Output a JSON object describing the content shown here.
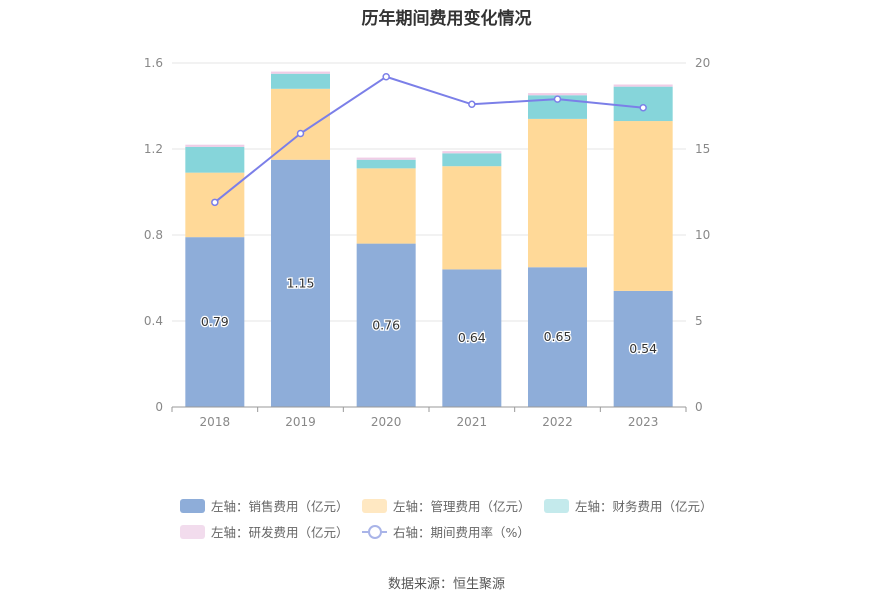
{
  "chart_data": {
    "type": "bar",
    "title": "历年期间费用变化情况",
    "categories": [
      "2018",
      "2019",
      "2020",
      "2021",
      "2022",
      "2023"
    ],
    "series": [
      {
        "name": "左轴：销售费用（亿元）",
        "type": "bar",
        "axis": "left",
        "color": "#8eadd9",
        "values": [
          0.79,
          1.15,
          0.76,
          0.64,
          0.65,
          0.54
        ],
        "labels": [
          "0.79",
          "1.15",
          "0.76",
          "0.64",
          "0.65",
          "0.54"
        ]
      },
      {
        "name": "左轴：管理费用（亿元）",
        "type": "bar",
        "axis": "left",
        "color": "#ffd998",
        "values": [
          0.3,
          0.33,
          0.35,
          0.48,
          0.69,
          0.79
        ]
      },
      {
        "name": "左轴：财务费用（亿元）",
        "type": "bar",
        "axis": "left",
        "color": "#86d5da",
        "values": [
          0.12,
          0.07,
          0.04,
          0.06,
          0.11,
          0.16
        ]
      },
      {
        "name": "左轴：研发费用（亿元）",
        "type": "bar",
        "axis": "left",
        "color": "#f0cde6",
        "values": [
          0.01,
          0.01,
          0.01,
          0.01,
          0.01,
          0.01
        ]
      },
      {
        "name": "右轴：期间费用率（%）",
        "type": "line",
        "axis": "right",
        "color": "#7b7fe8",
        "values": [
          11.9,
          15.9,
          19.2,
          17.6,
          17.9,
          17.4
        ]
      }
    ],
    "y_left": {
      "ticks": [
        "0",
        "0.4",
        "0.8",
        "1.2",
        "1.6"
      ],
      "min": 0,
      "max": 1.6
    },
    "y_right": {
      "ticks": [
        "0",
        "5",
        "10",
        "15",
        "20"
      ],
      "min": 0,
      "max": 20
    },
    "grid": true,
    "legend_position": "bottom"
  },
  "source": "数据来源：恒生聚源"
}
